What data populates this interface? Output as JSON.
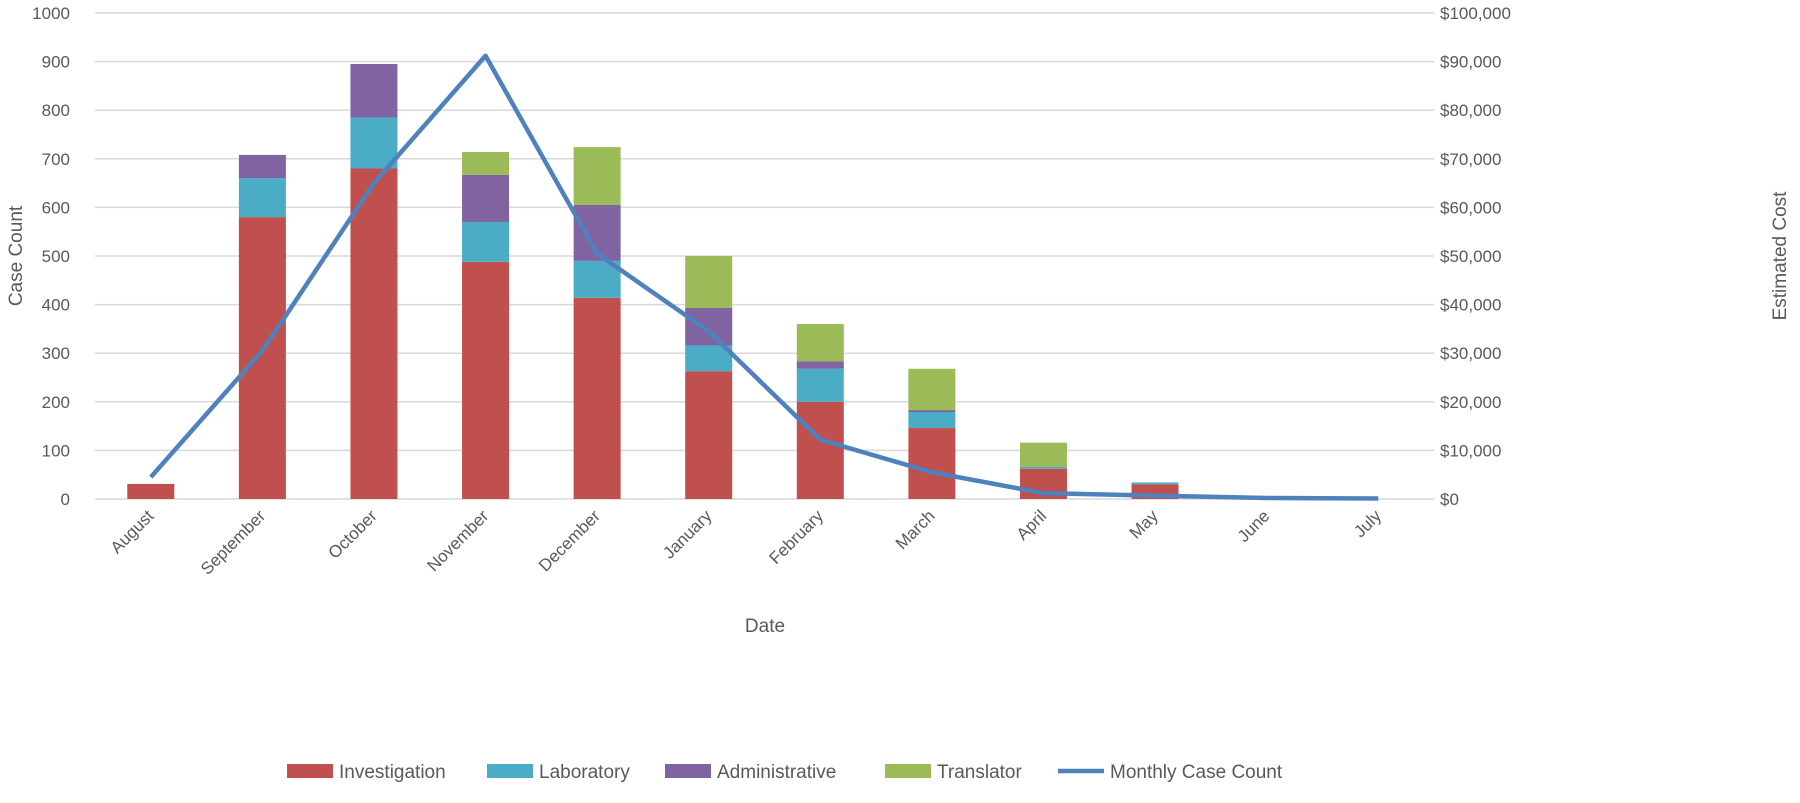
{
  "chart_data": {
    "type": "bar",
    "stacked": true,
    "title": "",
    "xlabel": "Date",
    "ylabel": "Case Count",
    "y2label": "Estimated Cost",
    "ylim": [
      0,
      1000
    ],
    "y2lim": [
      0,
      100000
    ],
    "yticks": [
      "0",
      "100",
      "200",
      "300",
      "400",
      "500",
      "600",
      "700",
      "800",
      "900",
      "1000"
    ],
    "y2ticks": [
      "$0",
      "$10,000",
      "$20,000",
      "$30,000",
      "$40,000",
      "$50,000",
      "$60,000",
      "$70,000",
      "$80,000",
      "$90,000",
      "$100,000"
    ],
    "grid": true,
    "legend_position": "bottom",
    "categories": [
      "August",
      "September",
      "October",
      "November",
      "December",
      "January",
      "February",
      "March",
      "April",
      "May",
      "June",
      "July"
    ],
    "series": [
      {
        "name": "Investigation",
        "type": "bar",
        "axis": "right",
        "color": "#C0504D",
        "values": [
          3100,
          58000,
          68000,
          48800,
          41400,
          26300,
          20000,
          14600,
          6200,
          3000,
          0,
          0
        ]
      },
      {
        "name": "Laboratory",
        "type": "bar",
        "axis": "right",
        "color": "#4BACC6",
        "values": [
          0,
          8000,
          10500,
          8200,
          7600,
          5300,
          6800,
          3300,
          300,
          400,
          0,
          0
        ]
      },
      {
        "name": "Administrative",
        "type": "bar",
        "axis": "right",
        "color": "#8064A2",
        "values": [
          0,
          4800,
          11000,
          9700,
          11500,
          7700,
          1500,
          400,
          100,
          0,
          0,
          0
        ]
      },
      {
        "name": "Translator",
        "type": "bar",
        "axis": "right",
        "color": "#9BBB59",
        "values": [
          0,
          0,
          0,
          4700,
          11900,
          10700,
          7700,
          8500,
          5000,
          0,
          0,
          0
        ]
      },
      {
        "name": "Monthly Case Count",
        "type": "line",
        "axis": "left",
        "color": "#4F81BD",
        "values": [
          45,
          305,
          650,
          912,
          505,
          345,
          122,
          55,
          12,
          7,
          2,
          1
        ]
      }
    ]
  }
}
